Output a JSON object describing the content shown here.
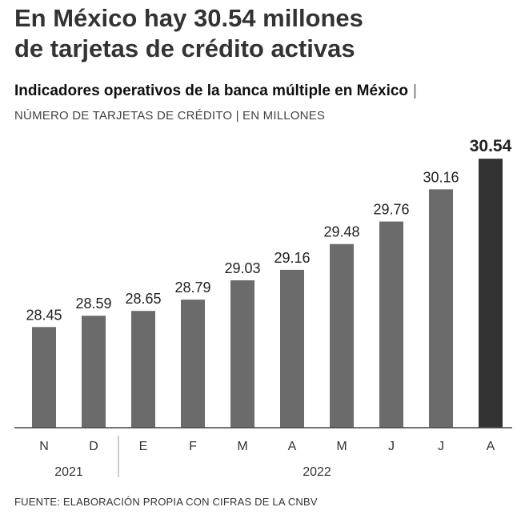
{
  "headline": {
    "line1": "En México hay 30.54 millones",
    "line2": "de tarjetas de crédito activas"
  },
  "subtitle": {
    "main": "Indicadores operativos de la banca múltiple en México",
    "separator": "|",
    "units": "NÚMERO DE TARJETAS DE CRÉDITO  |  EN MILLONES"
  },
  "source": "FUENTE: ELABORACIÓN PROPIA CON CIFRAS DE LA CNBV",
  "colors": {
    "bar": "#6b6b6b",
    "highlight": "#333333",
    "axis": "#444444"
  },
  "chart_data": {
    "type": "bar",
    "title": "Indicadores operativos de la banca múltiple en México",
    "ylabel": "Número de tarjetas de crédito (millones)",
    "xlabel": "",
    "ylim": [
      27.2,
      30.8
    ],
    "categories": [
      "N",
      "D",
      "E",
      "F",
      "M",
      "A",
      "M",
      "J",
      "J",
      "A"
    ],
    "values": [
      28.45,
      28.59,
      28.65,
      28.79,
      29.03,
      29.16,
      29.48,
      29.76,
      30.16,
      30.54
    ],
    "value_labels": [
      "28.45",
      "28.59",
      "28.65",
      "28.79",
      "29.03",
      "29.16",
      "29.48",
      "29.76",
      "30.16",
      "30.54"
    ],
    "highlight_index": 9,
    "year_groups": [
      {
        "label": "2021",
        "start": 0,
        "end": 1
      },
      {
        "label": "2022",
        "start": 2,
        "end": 9
      }
    ]
  }
}
